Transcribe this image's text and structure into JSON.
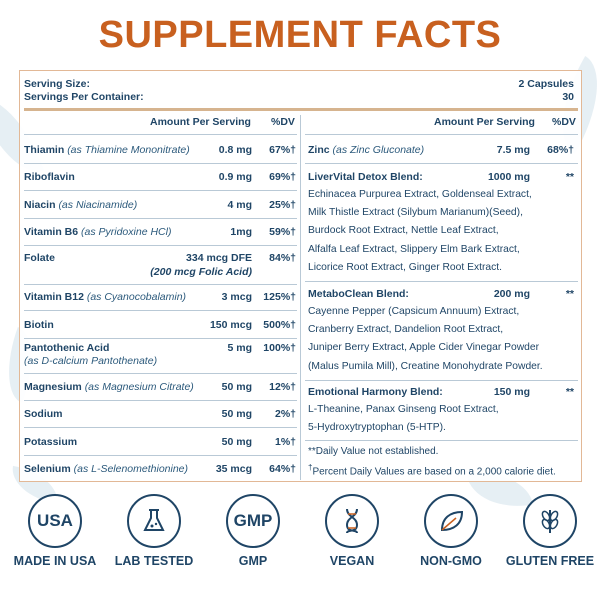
{
  "title": "SUPPLEMENT FACTS",
  "serving": {
    "size_label": "Serving Size:",
    "size_value": "2 Capsules",
    "per_container_label": "Servings Per Container:",
    "per_container_value": "30"
  },
  "columns": {
    "amount": "Amount Per Serving",
    "dv": "%DV"
  },
  "left_rows": [
    {
      "name": "Thiamin",
      "detail": "(as Thiamine Mononitrate)",
      "amount": "0.8 mg",
      "dv": "67%†"
    },
    {
      "name": "Riboflavin",
      "detail": "",
      "amount": "0.9 mg",
      "dv": "69%†"
    },
    {
      "name": "Niacin",
      "detail": "(as Niacinamide)",
      "amount": "4 mg",
      "dv": "25%†"
    },
    {
      "name": "Vitamin B6",
      "detail": "(as Pyridoxine HCl)",
      "amount": "1mg",
      "dv": "59%†"
    },
    {
      "name": "Folate",
      "detail": "",
      "amount": "334 mcg DFE",
      "amount2": "(200 mcg Folic Acid)",
      "dv": "84%†"
    },
    {
      "name": "Vitamin B12",
      "detail": "(as Cyanocobalamin)",
      "amount": "3 mcg",
      "dv": "125%†"
    },
    {
      "name": "Biotin",
      "detail": "",
      "amount": "150 mcg",
      "dv": "500%†"
    },
    {
      "name": "Pantothenic Acid",
      "detail": "(as D-calcium Pantothenate)",
      "amount": "5 mg",
      "dv": "100%†"
    },
    {
      "name": "Magnesium",
      "detail": "(as Magnesium Citrate)",
      "amount": "50 mg",
      "dv": "12%†"
    },
    {
      "name": "Sodium",
      "detail": "",
      "amount": "50 mg",
      "dv": "2%†"
    },
    {
      "name": "Potassium",
      "detail": "",
      "amount": "50 mg",
      "dv": "1%†"
    },
    {
      "name": "Selenium",
      "detail": "(as L-Selenomethionine)",
      "amount": "35 mcg",
      "dv": "64%†"
    }
  ],
  "right": {
    "zinc": {
      "name": "Zinc",
      "detail": "(as Zinc Gluconate)",
      "amount": "7.5 mg",
      "dv": "68%†"
    },
    "blend1": {
      "name": "LiverVital Detox Blend:",
      "amount": "1000 mg",
      "dv": "**",
      "lines": [
        "Echinacea Purpurea Extract, Goldenseal Extract,",
        "Milk Thistle Extract (Silybum Marianum)(Seed),",
        "Burdock Root Extract, Nettle Leaf Extract,",
        "Alfalfa Leaf Extract, Slippery Elm Bark Extract,",
        "Licorice Root Extract, Ginger Root Extract."
      ]
    },
    "blend2": {
      "name": "MetaboClean Blend:",
      "amount": "200 mg",
      "dv": "**",
      "lines": [
        "Cayenne Pepper (Capsicum Annuum) Extract,",
        "Cranberry Extract, Dandelion Root Extract,",
        "Juniper Berry Extract, Apple Cider Vinegar Powder",
        "(Malus Pumila Mill), Creatine Monohydrate Powder."
      ]
    },
    "blend3": {
      "name": "Emotional Harmony Blend:",
      "amount": "150 mg",
      "dv": "**",
      "lines": [
        "L-Theanine, Panax Ginseng Root Extract,",
        "5-Hydroxytryptophan (5-HTP)."
      ]
    },
    "footnote1": "**Daily Value not established.",
    "footnote2_mark": "†",
    "footnote2": "Percent Daily Values are based on a 2,000 calorie diet."
  },
  "badges": [
    {
      "icon": "usa-badge-icon",
      "text": "USA",
      "label": "MADE IN USA"
    },
    {
      "icon": "flask-icon",
      "text": "",
      "label": "LAB TESTED"
    },
    {
      "icon": "gmp-badge-icon",
      "text": "GMP",
      "label": "GMP"
    },
    {
      "icon": "dna-icon",
      "text": "",
      "label": "VEGAN"
    },
    {
      "icon": "leaf-icon",
      "text": "",
      "label": "NON-GMO"
    },
    {
      "icon": "wheat-icon",
      "text": "",
      "label": "GLUTEN FREE"
    }
  ],
  "colors": {
    "title": "#c8601f",
    "text": "#1f4566",
    "border": "#e2b896"
  }
}
